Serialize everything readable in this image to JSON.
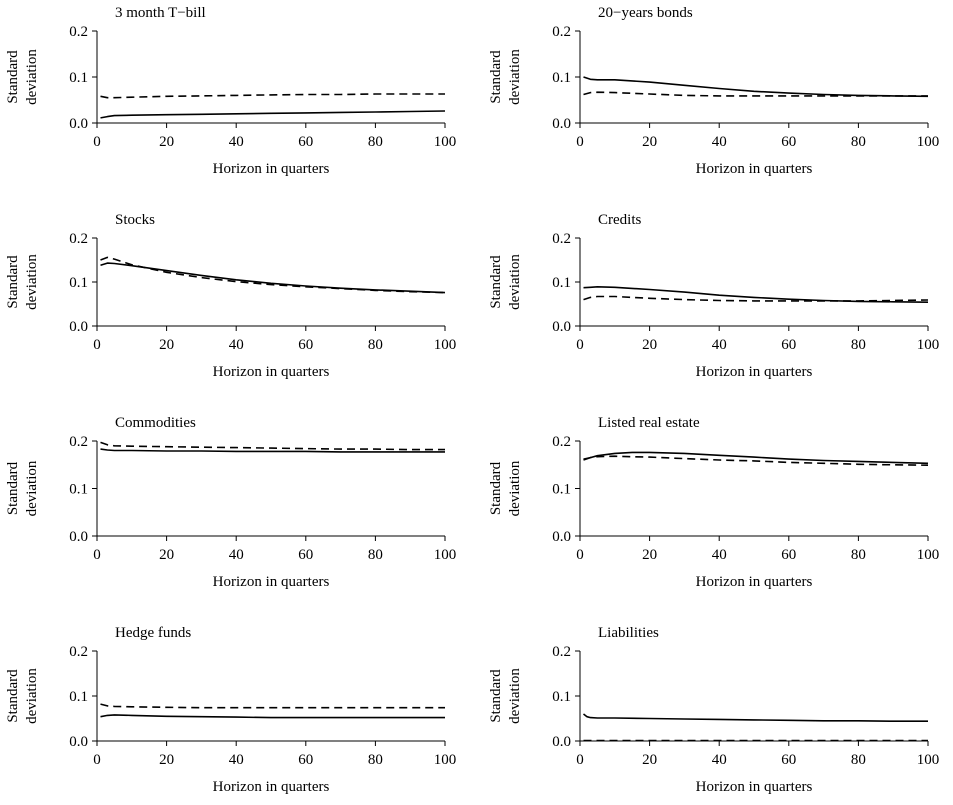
{
  "figure": {
    "line_color": "#000000",
    "background": "#ffffff"
  },
  "chart_data": [
    {
      "type": "line",
      "title": "3 month T−bill",
      "xlabel": "Horizon in quarters",
      "ylabel": [
        "Standard",
        "deviation"
      ],
      "xlim": [
        0,
        100
      ],
      "ylim": [
        0,
        0.2
      ],
      "xticks": [
        "0",
        "20",
        "40",
        "60",
        "80",
        "100"
      ],
      "yticks": [
        "0.0",
        "0.1",
        "0.2"
      ],
      "grid": false,
      "series": [
        {
          "style": "solid",
          "x": [
            1,
            3,
            5,
            10,
            20,
            30,
            40,
            50,
            60,
            70,
            80,
            90,
            100
          ],
          "y": [
            0.011,
            0.014,
            0.016,
            0.017,
            0.018,
            0.019,
            0.02,
            0.021,
            0.022,
            0.023,
            0.024,
            0.025,
            0.026
          ]
        },
        {
          "style": "dashed",
          "x": [
            1,
            3,
            5,
            10,
            20,
            30,
            40,
            50,
            60,
            70,
            80,
            90,
            100
          ],
          "y": [
            0.058,
            0.055,
            0.055,
            0.056,
            0.058,
            0.059,
            0.06,
            0.061,
            0.062,
            0.062,
            0.063,
            0.063,
            0.063
          ]
        }
      ]
    },
    {
      "type": "line",
      "title": "20−years bonds",
      "xlabel": "Horizon in quarters",
      "ylabel": [
        "Standard",
        "deviation"
      ],
      "xlim": [
        0,
        100
      ],
      "ylim": [
        0,
        0.2
      ],
      "xticks": [
        "0",
        "20",
        "40",
        "60",
        "80",
        "100"
      ],
      "yticks": [
        "0.0",
        "0.1",
        "0.2"
      ],
      "grid": false,
      "series": [
        {
          "style": "solid",
          "x": [
            1,
            3,
            5,
            10,
            20,
            30,
            40,
            50,
            60,
            70,
            80,
            90,
            100
          ],
          "y": [
            0.1,
            0.095,
            0.094,
            0.094,
            0.089,
            0.082,
            0.075,
            0.069,
            0.065,
            0.062,
            0.06,
            0.059,
            0.058
          ]
        },
        {
          "style": "dashed",
          "x": [
            1,
            3,
            5,
            10,
            20,
            30,
            40,
            50,
            60,
            70,
            80,
            90,
            100
          ],
          "y": [
            0.062,
            0.066,
            0.067,
            0.066,
            0.063,
            0.06,
            0.059,
            0.059,
            0.059,
            0.059,
            0.059,
            0.059,
            0.059
          ]
        }
      ]
    },
    {
      "type": "line",
      "title": "Stocks",
      "xlabel": "Horizon in quarters",
      "ylabel": [
        "Standard",
        "deviation"
      ],
      "xlim": [
        0,
        100
      ],
      "ylim": [
        0,
        0.2
      ],
      "xticks": [
        "0",
        "20",
        "40",
        "60",
        "80",
        "100"
      ],
      "yticks": [
        "0.0",
        "0.1",
        "0.2"
      ],
      "grid": false,
      "series": [
        {
          "style": "solid",
          "x": [
            1,
            3,
            5,
            10,
            20,
            30,
            40,
            50,
            60,
            70,
            80,
            90,
            100
          ],
          "y": [
            0.138,
            0.143,
            0.142,
            0.137,
            0.126,
            0.115,
            0.105,
            0.097,
            0.091,
            0.086,
            0.082,
            0.079,
            0.076
          ]
        },
        {
          "style": "dashed",
          "x": [
            1,
            3,
            5,
            10,
            20,
            30,
            40,
            50,
            60,
            70,
            80,
            90,
            100
          ],
          "y": [
            0.15,
            0.156,
            0.152,
            0.139,
            0.122,
            0.11,
            0.101,
            0.094,
            0.089,
            0.085,
            0.081,
            0.078,
            0.076
          ]
        }
      ]
    },
    {
      "type": "line",
      "title": "Credits",
      "xlabel": "Horizon in quarters",
      "ylabel": [
        "Standard",
        "deviation"
      ],
      "xlim": [
        0,
        100
      ],
      "ylim": [
        0,
        0.2
      ],
      "xticks": [
        "0",
        "20",
        "40",
        "60",
        "80",
        "100"
      ],
      "yticks": [
        "0.0",
        "0.1",
        "0.2"
      ],
      "grid": false,
      "series": [
        {
          "style": "solid",
          "x": [
            1,
            3,
            5,
            10,
            20,
            30,
            40,
            50,
            60,
            70,
            80,
            90,
            100
          ],
          "y": [
            0.087,
            0.088,
            0.089,
            0.088,
            0.083,
            0.077,
            0.07,
            0.065,
            0.061,
            0.058,
            0.056,
            0.055,
            0.054
          ]
        },
        {
          "style": "dashed",
          "x": [
            1,
            3,
            5,
            10,
            20,
            30,
            40,
            50,
            60,
            70,
            80,
            90,
            100
          ],
          "y": [
            0.06,
            0.065,
            0.067,
            0.067,
            0.063,
            0.06,
            0.058,
            0.057,
            0.057,
            0.057,
            0.057,
            0.058,
            0.059
          ]
        }
      ]
    },
    {
      "type": "line",
      "title": "Commodities",
      "xlabel": "Horizon in quarters",
      "ylabel": [
        "Standard",
        "deviation"
      ],
      "xlim": [
        0,
        100
      ],
      "ylim": [
        0,
        0.2
      ],
      "xticks": [
        "0",
        "20",
        "40",
        "60",
        "80",
        "100"
      ],
      "yticks": [
        "0.0",
        "0.1",
        "0.2"
      ],
      "grid": false,
      "series": [
        {
          "style": "solid",
          "x": [
            1,
            3,
            5,
            10,
            20,
            30,
            40,
            50,
            60,
            70,
            80,
            90,
            100
          ],
          "y": [
            0.183,
            0.181,
            0.18,
            0.18,
            0.179,
            0.179,
            0.178,
            0.178,
            0.178,
            0.177,
            0.177,
            0.177,
            0.177
          ]
        },
        {
          "style": "dashed",
          "x": [
            1,
            3,
            5,
            10,
            20,
            30,
            40,
            50,
            60,
            70,
            80,
            90,
            100
          ],
          "y": [
            0.197,
            0.192,
            0.19,
            0.189,
            0.188,
            0.187,
            0.186,
            0.185,
            0.184,
            0.183,
            0.183,
            0.182,
            0.182
          ]
        }
      ]
    },
    {
      "type": "line",
      "title": "Listed real estate",
      "xlabel": "Horizon in quarters",
      "ylabel": [
        "Standard",
        "deviation"
      ],
      "xlim": [
        0,
        100
      ],
      "ylim": [
        0,
        0.2
      ],
      "xticks": [
        "0",
        "20",
        "40",
        "60",
        "80",
        "100"
      ],
      "yticks": [
        "0.0",
        "0.1",
        "0.2"
      ],
      "grid": false,
      "series": [
        {
          "style": "solid",
          "x": [
            1,
            3,
            5,
            10,
            15,
            20,
            30,
            40,
            50,
            60,
            70,
            80,
            90,
            100
          ],
          "y": [
            0.16,
            0.165,
            0.169,
            0.174,
            0.176,
            0.176,
            0.174,
            0.17,
            0.166,
            0.162,
            0.159,
            0.157,
            0.155,
            0.153
          ]
        },
        {
          "style": "dashed",
          "x": [
            1,
            3,
            5,
            10,
            15,
            20,
            30,
            40,
            50,
            60,
            70,
            80,
            90,
            100
          ],
          "y": [
            0.162,
            0.165,
            0.167,
            0.168,
            0.167,
            0.166,
            0.163,
            0.16,
            0.158,
            0.155,
            0.153,
            0.151,
            0.15,
            0.149
          ]
        }
      ]
    },
    {
      "type": "line",
      "title": "Hedge funds",
      "xlabel": "Horizon in quarters",
      "ylabel": [
        "Standard",
        "deviation"
      ],
      "xlim": [
        0,
        100
      ],
      "ylim": [
        0,
        0.2
      ],
      "xticks": [
        "0",
        "20",
        "40",
        "60",
        "80",
        "100"
      ],
      "yticks": [
        "0.0",
        "0.1",
        "0.2"
      ],
      "grid": false,
      "series": [
        {
          "style": "solid",
          "x": [
            1,
            3,
            5,
            10,
            20,
            30,
            40,
            50,
            60,
            70,
            80,
            90,
            100
          ],
          "y": [
            0.054,
            0.057,
            0.058,
            0.057,
            0.055,
            0.054,
            0.053,
            0.052,
            0.052,
            0.052,
            0.052,
            0.052,
            0.052
          ]
        },
        {
          "style": "dashed",
          "x": [
            1,
            3,
            5,
            10,
            20,
            30,
            40,
            50,
            60,
            70,
            80,
            90,
            100
          ],
          "y": [
            0.082,
            0.078,
            0.077,
            0.076,
            0.075,
            0.074,
            0.074,
            0.074,
            0.074,
            0.074,
            0.074,
            0.074,
            0.074
          ]
        }
      ]
    },
    {
      "type": "line",
      "title": "Liabilities",
      "xlabel": "Horizon in quarters",
      "ylabel": [
        "Standard",
        "deviation"
      ],
      "xlim": [
        0,
        100
      ],
      "ylim": [
        0,
        0.2
      ],
      "xticks": [
        "0",
        "20",
        "40",
        "60",
        "80",
        "100"
      ],
      "yticks": [
        "0.0",
        "0.1",
        "0.2"
      ],
      "grid": false,
      "series": [
        {
          "style": "solid",
          "x": [
            1,
            2,
            3,
            5,
            10,
            20,
            30,
            40,
            50,
            60,
            70,
            80,
            90,
            100
          ],
          "y": [
            0.06,
            0.054,
            0.052,
            0.051,
            0.051,
            0.05,
            0.049,
            0.048,
            0.047,
            0.046,
            0.045,
            0.045,
            0.044,
            0.044
          ]
        },
        {
          "style": "dashed",
          "x": [
            1,
            3,
            5,
            10,
            20,
            30,
            40,
            50,
            60,
            70,
            80,
            90,
            100
          ],
          "y": [
            0.001,
            0.001,
            0.001,
            0.001,
            0.001,
            0.001,
            0.001,
            0.001,
            0.001,
            0.001,
            0.001,
            0.001,
            0.001
          ]
        }
      ]
    }
  ]
}
